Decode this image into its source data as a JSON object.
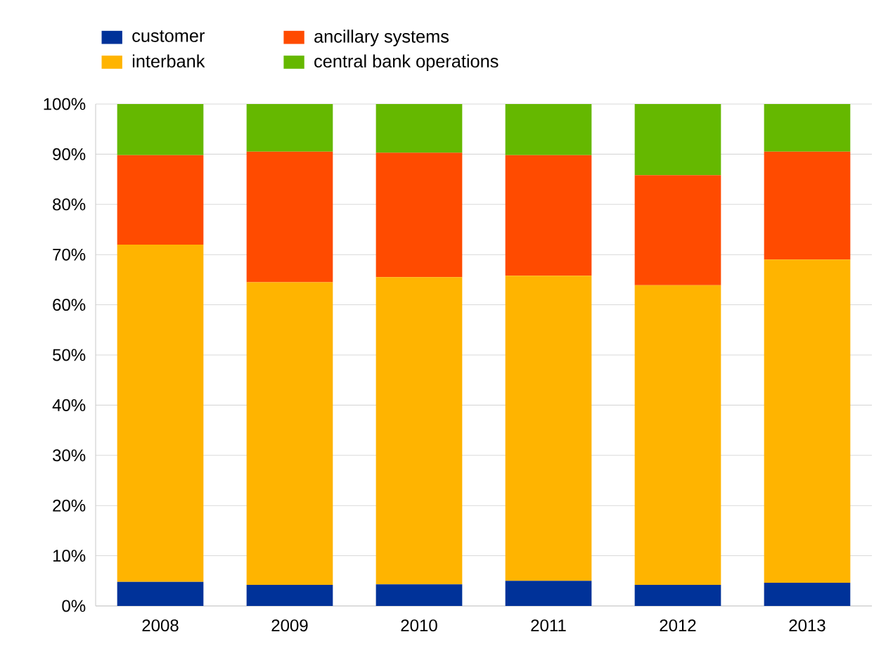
{
  "chart_data": {
    "type": "bar",
    "stacked": true,
    "categories": [
      "2008",
      "2009",
      "2010",
      "2011",
      "2012",
      "2013"
    ],
    "series": [
      {
        "name": "customer",
        "color": "#003299",
        "values": [
          4.8,
          4.2,
          4.3,
          5.0,
          4.2,
          4.6
        ]
      },
      {
        "name": "interbank",
        "color": "#ffb400",
        "values": [
          67.2,
          60.3,
          61.2,
          60.8,
          59.7,
          64.4
        ]
      },
      {
        "name": "ancillary systems",
        "color": "#ff4b00",
        "values": [
          17.8,
          26.0,
          24.8,
          24.0,
          21.9,
          21.5
        ]
      },
      {
        "name": "central bank operations",
        "color": "#65b800",
        "values": [
          10.2,
          9.5,
          9.7,
          10.2,
          14.2,
          9.5
        ]
      }
    ],
    "ylim": [
      0,
      100
    ],
    "yticks": [
      {
        "value": 0,
        "label": "0%"
      },
      {
        "value": 10,
        "label": "10%"
      },
      {
        "value": 20,
        "label": "20%"
      },
      {
        "value": 30,
        "label": "30%"
      },
      {
        "value": 40,
        "label": "40%"
      },
      {
        "value": 50,
        "label": "50%"
      },
      {
        "value": 60,
        "label": "60%"
      },
      {
        "value": 70,
        "label": "70%"
      },
      {
        "value": 80,
        "label": "80%"
      },
      {
        "value": 90,
        "label": "90%"
      },
      {
        "value": 100,
        "label": "100%"
      }
    ],
    "grid": "y",
    "legend": "top left"
  }
}
